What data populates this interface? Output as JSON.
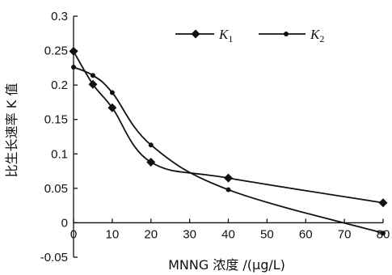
{
  "chart_data": {
    "type": "line",
    "title": "",
    "xlabel": "MNNG 浓度 /(μg/L)",
    "ylabel": "比生长速率 K 值",
    "xlim": [
      0,
      80
    ],
    "ylim": [
      -0.05,
      0.3
    ],
    "x_ticks": [
      "0",
      "10",
      "20",
      "30",
      "40",
      "50",
      "60",
      "70",
      "80"
    ],
    "y_ticks": [
      "-0.05",
      "0",
      "0.05",
      "0.1",
      "0.15",
      "0.2",
      "0.25",
      "0.3"
    ],
    "grid": false,
    "legend_position": "top-right",
    "series": [
      {
        "name": "K1",
        "display": {
          "main": "K",
          "sub": "1"
        },
        "marker": "diamond",
        "color": "#111111",
        "x": [
          0,
          5,
          10,
          20,
          40,
          80
        ],
        "y": [
          0.249,
          0.201,
          0.167,
          0.088,
          0.065,
          0.029
        ]
      },
      {
        "name": "K2",
        "display": {
          "main": "K",
          "sub": "2"
        },
        "marker": "dot",
        "color": "#111111",
        "x": [
          0,
          5,
          10,
          20,
          40,
          80
        ],
        "y": [
          0.226,
          0.214,
          0.189,
          0.113,
          0.048,
          -0.015
        ]
      }
    ]
  }
}
